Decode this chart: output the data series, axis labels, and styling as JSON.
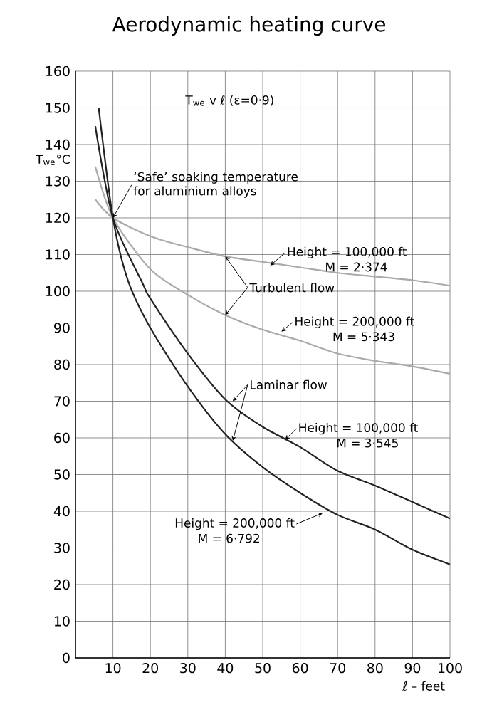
{
  "chart_data": {
    "type": "line",
    "title": "Aerodynamic heating curve",
    "subtitle": "T$_{we}$ v ℓ  (ε=0·9)",
    "xlabel": "ℓ – feet",
    "ylabel": "T$_{we}$°C",
    "xlim": [
      0,
      100
    ],
    "ylim": [
      0,
      160
    ],
    "xticks": [
      10,
      20,
      30,
      40,
      50,
      60,
      70,
      80,
      90,
      100
    ],
    "yticks": [
      0,
      10,
      20,
      30,
      40,
      50,
      60,
      70,
      80,
      90,
      100,
      110,
      120,
      130,
      140,
      150,
      160
    ],
    "grid": true,
    "series": [
      {
        "color": "#aaaaaa",
        "x": [
          5.3,
          10,
          20,
          30,
          40,
          50,
          60,
          70,
          80,
          90,
          100
        ],
        "values": [
          125,
          120,
          115,
          112,
          109.5,
          108,
          106.5,
          105,
          104,
          103,
          101.5
        ]
      },
      {
        "color": "#aaaaaa",
        "x": [
          5.3,
          10,
          20,
          30,
          40,
          50,
          60,
          70,
          80,
          90,
          100
        ],
        "values": [
          134,
          120,
          106,
          99,
          93.5,
          89.5,
          86.5,
          83,
          81,
          79.5,
          77.5
        ]
      },
      {
        "color": "#222222",
        "x": [
          5.3,
          10,
          18,
          20,
          30,
          40,
          50,
          60,
          70,
          80,
          90,
          100
        ],
        "values": [
          145,
          120,
          102,
          98,
          83,
          70.5,
          63,
          57.5,
          51,
          47,
          42.5,
          38
        ]
      },
      {
        "color": "#222222",
        "x": [
          6.2,
          10,
          14,
          20,
          30,
          40,
          50,
          60,
          70,
          80,
          90,
          100
        ],
        "values": [
          150,
          120,
          103,
          90,
          74,
          61,
          52,
          45,
          39,
          35,
          29.5,
          25.5
        ]
      }
    ],
    "annotations": [
      {
        "text": "‘Safe’ soaking temperature for aluminium alloys",
        "x": 10,
        "y": 120
      },
      {
        "text": "Height = 100,000 ft",
        "x": 52,
        "y": 107
      },
      "M = 2·374",
      {
        "text": "Turbulent flow",
        "x": 40,
        "y": 109.5
      },
      {
        "text": "Height = 200,000 ft",
        "x": 55,
        "y": 89
      },
      "M = 5·343",
      {
        "text": "Laminar flow",
        "x": 42,
        "y": 70
      },
      {
        "text": "Height = 100,000 ft",
        "x": 56,
        "y": 59.5
      },
      "M = 3·545",
      {
        "text": "Height = 200,000 ft",
        "x": 66,
        "y": 39.5
      },
      "M = 6·792"
    ]
  }
}
